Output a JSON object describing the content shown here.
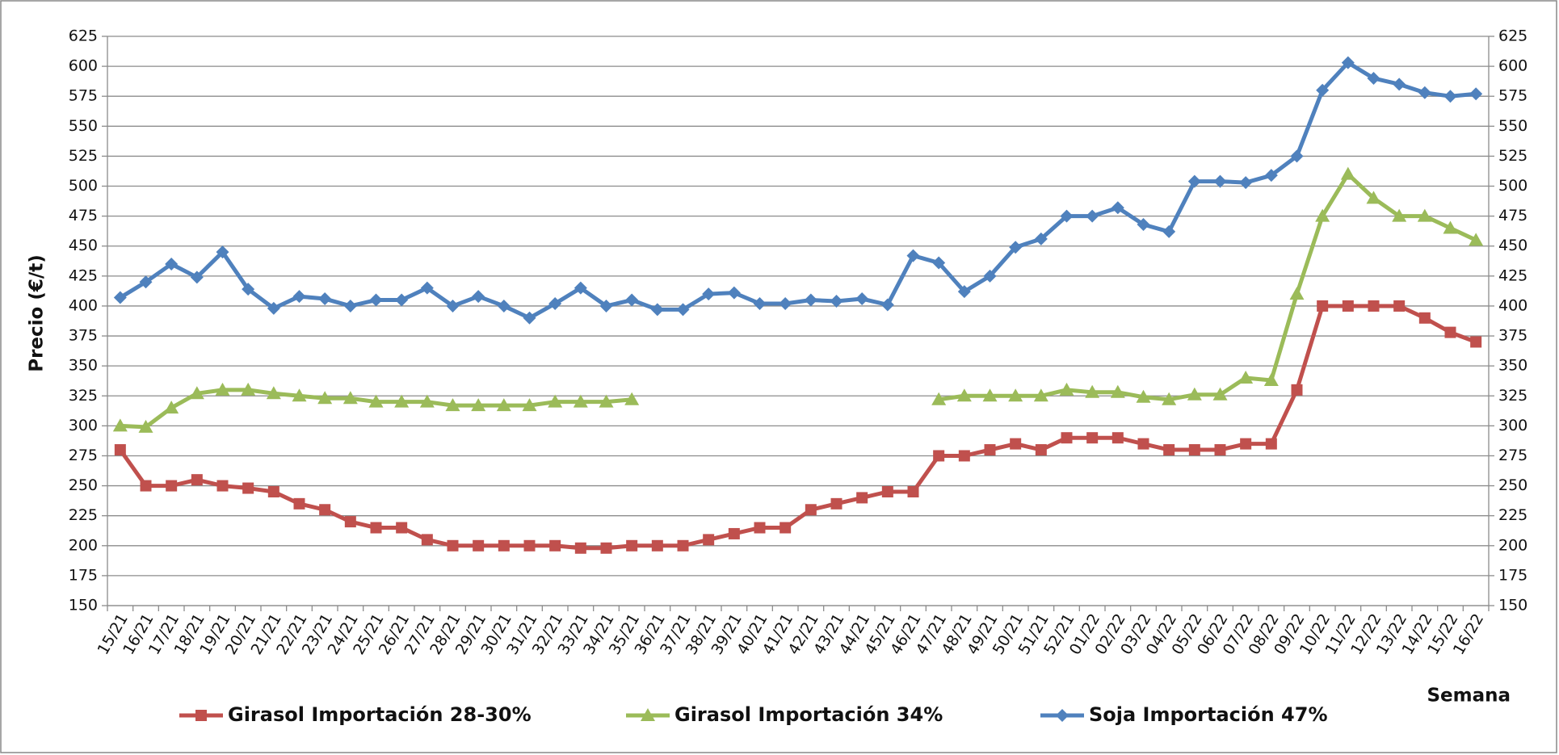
{
  "chart_data": {
    "type": "line",
    "y_label": "Precio (€/t)",
    "x_label": "Semana",
    "categories": [
      "15/21",
      "16/21",
      "17/21",
      "18/21",
      "19/21",
      "20/21",
      "21/21",
      "22/21",
      "23/21",
      "24/21",
      "25/21",
      "26/21",
      "27/21",
      "28/21",
      "29/21",
      "30/21",
      "31/21",
      "32/21",
      "33/21",
      "34/21",
      "35/21",
      "36/21",
      "37/21",
      "38/21",
      "39/21",
      "40/21",
      "41/21",
      "42/21",
      "43/21",
      "44/21",
      "45/21",
      "46/21",
      "47/21",
      "48/21",
      "49/21",
      "50/21",
      "51/21",
      "52/21",
      "01/22",
      "02/22",
      "03/22",
      "04/22",
      "05/22",
      "06/22",
      "07/22",
      "08/22",
      "09/22",
      "10/22",
      "11/22",
      "12/22",
      "13/22",
      "14/22",
      "15/22",
      "16/22"
    ],
    "series": [
      {
        "name": "Girasol Importación 28-30%",
        "color": "#c0504d",
        "marker": "square",
        "values": [
          280,
          250,
          250,
          255,
          250,
          248,
          245,
          235,
          230,
          220,
          215,
          215,
          205,
          200,
          200,
          200,
          200,
          200,
          198,
          198,
          200,
          200,
          200,
          205,
          210,
          215,
          215,
          230,
          235,
          240,
          245,
          245,
          275,
          275,
          280,
          285,
          280,
          290,
          290,
          290,
          285,
          280,
          280,
          280,
          285,
          285,
          330,
          400,
          400,
          400,
          400,
          390,
          378,
          370
        ]
      },
      {
        "name": "Girasol Importación 34%",
        "color": "#9bbb59",
        "marker": "triangle",
        "values": [
          300,
          299,
          315,
          327,
          330,
          330,
          327,
          325,
          323,
          323,
          320,
          320,
          320,
          317,
          317,
          317,
          317,
          320,
          320,
          320,
          322,
          null,
          null,
          null,
          null,
          null,
          null,
          null,
          null,
          null,
          null,
          null,
          322,
          325,
          325,
          325,
          325,
          330,
          328,
          328,
          324,
          322,
          326,
          326,
          340,
          338,
          410,
          475,
          510,
          490,
          475,
          475,
          465,
          455
        ]
      },
      {
        "name": "Soja Importación 47%",
        "color": "#4f81bd",
        "marker": "diamond",
        "values": [
          407,
          420,
          435,
          424,
          445,
          414,
          398,
          408,
          406,
          400,
          405,
          405,
          415,
          400,
          408,
          400,
          390,
          402,
          415,
          400,
          405,
          397,
          397,
          410,
          411,
          402,
          402,
          405,
          404,
          406,
          401,
          442,
          436,
          412,
          425,
          449,
          456,
          475,
          475,
          482,
          468,
          462,
          504,
          504,
          503,
          509,
          525,
          580,
          603,
          590,
          585,
          578,
          575,
          577
        ]
      }
    ],
    "ylim": [
      150,
      625
    ],
    "yticks": [
      150,
      175,
      200,
      225,
      250,
      275,
      300,
      325,
      350,
      375,
      400,
      425,
      450,
      475,
      500,
      525,
      550,
      575,
      600,
      625
    ],
    "y2lim": [
      150,
      625
    ],
    "y2ticks": [
      150,
      175,
      200,
      225,
      250,
      275,
      300,
      325,
      350,
      375,
      400,
      425,
      450,
      475,
      500,
      525,
      550,
      575,
      600,
      625
    ],
    "grid": true,
    "legend": "bottom"
  }
}
